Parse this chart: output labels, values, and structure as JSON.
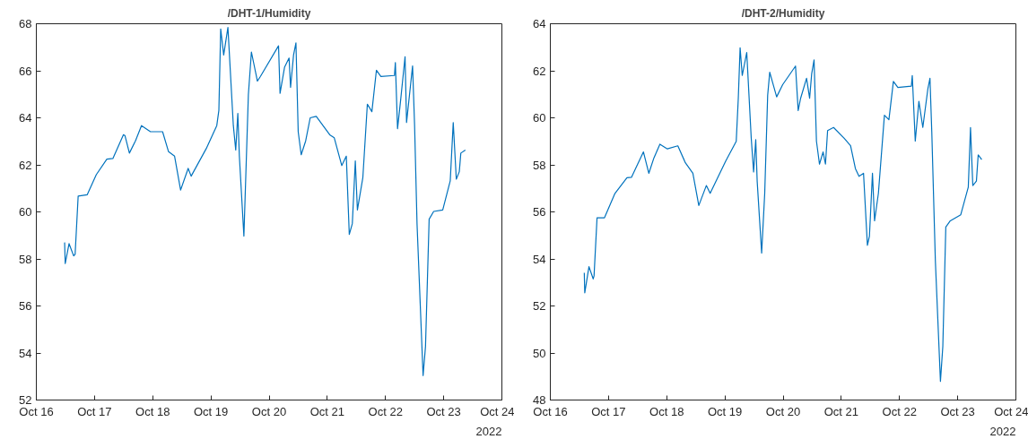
{
  "chart_data": [
    {
      "type": "line",
      "title": "/DHT-1/Humidity",
      "annotations": [
        "2022"
      ],
      "grid": false,
      "line_style": "solid",
      "marker": "none",
      "xlim": [
        "2022-10-16",
        "2022-10-24"
      ],
      "xticks": [
        {
          "value": "2022-10-16",
          "label": "Oct 16"
        },
        {
          "value": "2022-10-17",
          "label": "Oct 17"
        },
        {
          "value": "2022-10-18",
          "label": "Oct 18"
        },
        {
          "value": "2022-10-19",
          "label": "Oct 19"
        },
        {
          "value": "2022-10-20",
          "label": "Oct 20"
        },
        {
          "value": "2022-10-21",
          "label": "Oct 21"
        },
        {
          "value": "2022-10-22",
          "label": "Oct 22"
        },
        {
          "value": "2022-10-23",
          "label": "Oct 23"
        },
        {
          "value": "2022-10-24",
          "label": "Oct 24"
        }
      ],
      "ylim": [
        52,
        68
      ],
      "yticks": [
        52,
        54,
        56,
        58,
        60,
        62,
        64,
        66,
        68
      ],
      "series": [
        {
          "color": "#0072bd",
          "x": [
            "2022-10-16T11:40",
            "2022-10-16T11:55",
            "2022-10-16T13:30",
            "2022-10-16T15:24",
            "2022-10-16T16:00",
            "2022-10-16T17:15",
            "2022-10-16T21:00",
            "2022-10-17T00:43",
            "2022-10-17T05:05",
            "2022-10-17T07:34",
            "2022-10-17T11:54",
            "2022-10-17T12:32",
            "2022-10-17T14:23",
            "2022-10-17T16:53",
            "2022-10-17T19:22",
            "2022-10-17T23:04",
            "2022-10-18T04:04",
            "2022-10-18T06:32",
            "2022-10-18T09:01",
            "2022-10-18T11:30",
            "2022-10-18T14:37",
            "2022-10-18T15:51",
            "2022-10-18T22:04",
            "2022-10-19T02:25",
            "2022-10-19T03:17",
            "2022-10-19T04:02",
            "2022-10-19T05:16",
            "2022-10-19T07:01",
            "2022-10-19T09:15",
            "2022-10-19T10:14",
            "2022-10-19T11:06",
            "2022-10-19T11:44",
            "2022-10-19T13:36",
            "2022-10-19T15:27",
            "2022-10-19T16:42",
            "2022-10-19T19:11",
            "2022-10-19T20:26",
            "2022-10-20T03:53",
            "2022-10-20T04:31",
            "2022-10-20T06:22",
            "2022-10-20T08:14",
            "2022-10-20T08:51",
            "2022-10-20T10:05",
            "2022-10-20T11:04",
            "2022-10-20T12:00",
            "2022-10-20T13:14",
            "2022-10-20T15:05",
            "2022-10-20T16:57",
            "2022-10-20T19:26",
            "2022-10-21T01:00",
            "2022-10-21T02:52",
            "2022-10-21T05:58",
            "2022-10-21T07:50",
            "2022-10-21T09:04",
            "2022-10-21T10:19",
            "2022-10-21T11:33",
            "2022-10-21T12:25",
            "2022-10-21T14:39",
            "2022-10-21T16:31",
            "2022-10-21T18:23",
            "2022-10-21T20:15",
            "2022-10-21T22:06",
            "2022-10-22T03:42",
            "2022-10-22T04:04",
            "2022-10-22T04:58",
            "2022-10-22T06:12",
            "2022-10-22T08:04",
            "2022-10-22T08:41",
            "2022-10-22T11:10",
            "2022-10-22T12:00",
            "2022-10-22T13:00",
            "2022-10-22T15:30",
            "2022-10-22T16:30",
            "2022-10-22T18:00",
            "2022-10-22T19:52",
            "2022-10-22T23:36",
            "2022-10-23T02:42",
            "2022-10-23T03:56",
            "2022-10-23T05:12",
            "2022-10-23T06:26",
            "2022-10-23T07:04",
            "2022-10-23T08:56"
          ],
          "values": [
            58.7,
            57.8,
            58.65,
            58.13,
            58.2,
            60.67,
            60.73,
            61.58,
            62.24,
            62.27,
            63.28,
            63.25,
            62.5,
            63.02,
            63.67,
            63.41,
            63.41,
            62.56,
            62.37,
            60.93,
            61.85,
            61.52,
            62.69,
            63.67,
            64.32,
            67.78,
            66.67,
            67.84,
            63.67,
            62.63,
            64.19,
            62.37,
            58.97,
            64.98,
            66.8,
            65.56,
            65.76,
            67.06,
            65.04,
            66.15,
            66.54,
            65.3,
            66.67,
            67.19,
            63.41,
            62.43,
            63.02,
            64.0,
            64.06,
            63.28,
            63.15,
            61.97,
            62.37,
            59.04,
            59.5,
            62.17,
            60.08,
            61.45,
            64.58,
            64.26,
            66.02,
            65.76,
            65.8,
            66.35,
            63.54,
            64.71,
            66.6,
            63.8,
            66.21,
            63.67,
            59.5,
            53.04,
            54.28,
            59.69,
            60.02,
            60.08,
            61.32,
            63.8,
            61.39,
            61.71,
            62.5,
            62.63
          ]
        }
      ]
    },
    {
      "type": "line",
      "title": "/DHT-2/Humidity",
      "annotations": [
        "2022"
      ],
      "grid": false,
      "line_style": "solid",
      "marker": "none",
      "xlim": [
        "2022-10-16",
        "2022-10-24"
      ],
      "xticks": [
        {
          "value": "2022-10-16",
          "label": "Oct 16"
        },
        {
          "value": "2022-10-17",
          "label": "Oct 17"
        },
        {
          "value": "2022-10-18",
          "label": "Oct 18"
        },
        {
          "value": "2022-10-19",
          "label": "Oct 19"
        },
        {
          "value": "2022-10-20",
          "label": "Oct 20"
        },
        {
          "value": "2022-10-21",
          "label": "Oct 21"
        },
        {
          "value": "2022-10-22",
          "label": "Oct 22"
        },
        {
          "value": "2022-10-23",
          "label": "Oct 23"
        },
        {
          "value": "2022-10-24",
          "label": "Oct 24"
        }
      ],
      "ylim": [
        48,
        64
      ],
      "yticks": [
        48,
        50,
        52,
        54,
        56,
        58,
        60,
        62,
        64
      ],
      "series": [
        {
          "color": "#0072bd",
          "x": [
            "2022-10-16T14:00",
            "2022-10-16T14:12",
            "2022-10-16T15:56",
            "2022-10-16T17:40",
            "2022-10-16T18:02",
            "2022-10-16T19:16",
            "2022-10-16T22:20",
            "2022-10-17T02:40",
            "2022-10-17T07:36",
            "2022-10-17T09:27",
            "2022-10-17T14:24",
            "2022-10-17T16:37",
            "2022-10-17T18:42",
            "2022-10-17T21:11",
            "2022-10-18T00:16",
            "2022-10-18T04:35",
            "2022-10-18T07:41",
            "2022-10-18T10:47",
            "2022-10-18T13:14",
            "2022-10-18T16:20",
            "2022-10-18T17:55",
            "2022-10-19T00:20",
            "2022-10-19T04:40",
            "2022-10-19T05:31",
            "2022-10-19T06:16",
            "2022-10-19T07:09",
            "2022-10-19T09:00",
            "2022-10-19T10:51",
            "2022-10-19T11:50",
            "2022-10-19T12:43",
            "2022-10-19T13:18",
            "2022-10-19T15:09",
            "2022-10-19T16:25",
            "2022-10-19T17:38",
            "2022-10-19T18:29",
            "2022-10-19T21:20",
            "2022-10-19T23:49",
            "2022-10-20T05:07",
            "2022-10-20T06:13",
            "2022-10-20T07:13",
            "2022-10-20T09:40",
            "2022-10-20T10:56",
            "2022-10-20T11:47",
            "2022-10-20T12:46",
            "2022-10-20T13:45",
            "2022-10-20T15:00",
            "2022-10-20T16:29",
            "2022-10-20T17:28",
            "2022-10-20T18:21",
            "2022-10-20T20:48",
            "2022-10-21T01:07",
            "2022-10-21T03:49",
            "2022-10-21T05:49",
            "2022-10-21T07:18",
            "2022-10-21T09:10",
            "2022-10-21T10:46",
            "2022-10-21T11:36",
            "2022-10-21T12:51",
            "2022-10-21T13:43",
            "2022-10-21T15:18",
            "2022-10-21T17:47",
            "2022-10-21T19:38",
            "2022-10-21T21:29",
            "2022-10-21T23:20",
            "2022-10-22T04:54",
            "2022-10-22T05:16",
            "2022-10-22T06:30",
            "2022-10-22T08:00",
            "2022-10-22T09:37",
            "2022-10-22T11:41",
            "2022-10-22T12:34",
            "2022-10-22T13:19",
            "2022-10-22T14:47",
            "2022-10-22T16:53",
            "2022-10-22T17:52",
            "2022-10-22T19:06",
            "2022-10-22T20:57",
            "2022-10-23T01:16",
            "2022-10-23T04:22",
            "2022-10-23T05:17",
            "2022-10-23T06:14",
            "2022-10-23T07:43",
            "2022-10-23T08:27",
            "2022-10-23T09:55"
          ],
          "values": [
            53.41,
            52.56,
            53.67,
            53.15,
            53.28,
            55.75,
            55.75,
            56.79,
            57.45,
            57.47,
            58.55,
            57.64,
            58.29,
            58.88,
            58.68,
            58.81,
            58.09,
            57.64,
            56.27,
            57.12,
            56.79,
            58.16,
            59.0,
            60.83,
            62.98,
            61.8,
            62.78,
            59.14,
            57.7,
            59.07,
            57.31,
            54.25,
            56.79,
            60.96,
            61.94,
            60.89,
            61.41,
            62.2,
            60.31,
            60.83,
            61.68,
            60.83,
            61.87,
            62.46,
            59.01,
            58.03,
            58.55,
            58.03,
            59.46,
            59.59,
            59.14,
            58.81,
            57.84,
            57.51,
            57.64,
            54.58,
            54.97,
            57.64,
            55.62,
            56.79,
            60.11,
            59.92,
            61.55,
            61.29,
            61.35,
            61.8,
            59.01,
            60.7,
            59.59,
            61.22,
            61.68,
            59.4,
            53.93,
            48.79,
            50.28,
            55.36,
            55.62,
            55.88,
            57.05,
            59.59,
            57.12,
            57.31,
            58.42,
            58.22
          ]
        }
      ]
    }
  ]
}
